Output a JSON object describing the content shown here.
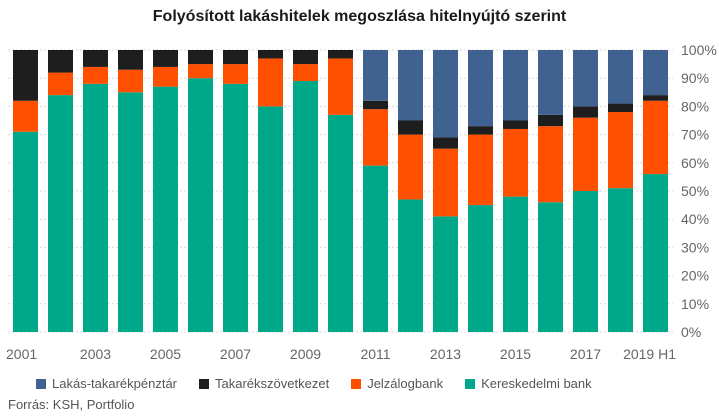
{
  "chart_data": {
    "type": "bar",
    "stacked": true,
    "title": "Folyósított lakáshitelek megoszlása hitelnyújtó szerint",
    "source": "Forrás: KSH, Portfolio",
    "categories": [
      "2001",
      "2002",
      "2003",
      "2004",
      "2005",
      "2006",
      "2007",
      "2008",
      "2009",
      "2010",
      "2011",
      "2012",
      "2013",
      "2014",
      "2015",
      "2016",
      "2017",
      "2018",
      "2019 H1"
    ],
    "x_tick_labels": [
      "2001",
      "",
      "2003",
      "",
      "2005",
      "",
      "2007",
      "",
      "2009",
      "",
      "2011",
      "",
      "2013",
      "",
      "2015",
      "",
      "2017",
      "",
      "2019 H1"
    ],
    "y_tick_labels": [
      "0%",
      "10%",
      "20%",
      "30%",
      "40%",
      "50%",
      "60%",
      "70%",
      "80%",
      "90%",
      "100%"
    ],
    "ylim": [
      0,
      100
    ],
    "y_axis_side": "right",
    "grid": true,
    "legend_position": "bottom",
    "series": [
      {
        "name": "Kereskedelmi bank",
        "color": "#00A88A",
        "values": [
          71,
          84,
          88,
          85,
          87,
          90,
          88,
          80,
          89,
          77,
          59,
          47,
          41,
          45,
          48,
          46,
          50,
          51,
          56
        ]
      },
      {
        "name": "Jelzálogbank",
        "color": "#FF5000",
        "values": [
          11,
          8,
          6,
          8,
          7,
          5,
          7,
          17,
          6,
          20,
          20,
          23,
          24,
          25,
          24,
          27,
          26,
          27,
          26
        ]
      },
      {
        "name": "Takarékszövetkezet",
        "color": "#1E1E1E",
        "values": [
          18,
          8,
          6,
          7,
          6,
          5,
          5,
          3,
          5,
          3,
          3,
          5,
          4,
          3,
          3,
          4,
          4,
          3,
          2
        ]
      },
      {
        "name": "Lakás-takarékpénztár",
        "color": "#3F6290",
        "values": [
          0,
          0,
          0,
          0,
          0,
          0,
          0,
          0,
          0,
          0,
          18,
          25,
          31,
          27,
          25,
          23,
          20,
          19,
          16
        ]
      }
    ],
    "legend_order": [
      "Lakás-takarékpénztár",
      "Takarékszövetkezet",
      "Jelzálogbank",
      "Kereskedelmi bank"
    ]
  }
}
